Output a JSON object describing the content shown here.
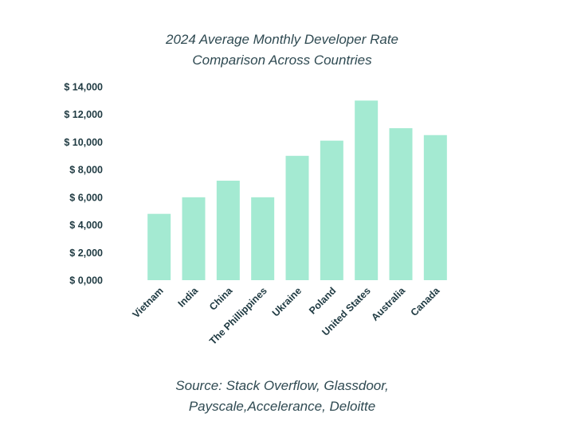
{
  "chart_data": {
    "type": "bar",
    "title_lines": [
      "2024 Average Monthly Developer Rate",
      "Comparison Across Countries"
    ],
    "categories": [
      "Vietnam",
      "India",
      "China",
      "The Phillippines",
      "Ukraine",
      "Poland",
      "United States",
      "Australia",
      "Canada"
    ],
    "values": [
      4800,
      6000,
      7200,
      6000,
      9000,
      10100,
      13000,
      11000,
      10500
    ],
    "ylim": [
      0,
      14000
    ],
    "yticks": [
      0,
      2000,
      4000,
      6000,
      8000,
      10000,
      12000,
      14000
    ],
    "ytick_labels": [
      "$ 0,000",
      "$ 2,000",
      "$ 4,000",
      "$ 6,000",
      "$ 8,000",
      "$ 10,000",
      "$ 12,000",
      "$ 14,000"
    ],
    "xlabel": "",
    "ylabel": "",
    "grid": false,
    "legend": "none",
    "source_lines": [
      "Source: Stack Overflow, Glassdoor,",
      "Payscale,Accelerance, Deloitte"
    ],
    "bar_color": "#a4ead2"
  }
}
